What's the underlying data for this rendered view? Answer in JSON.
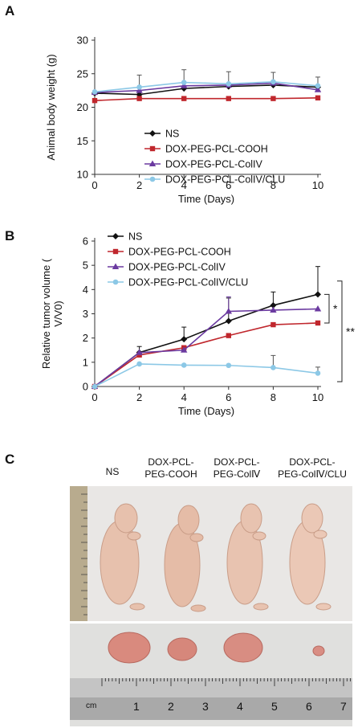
{
  "panels": {
    "a": "A",
    "b": "B",
    "c": "C"
  },
  "chart_data": [
    {
      "type": "line",
      "id": "A",
      "xlabel": "Time (Days)",
      "ylabel": "Animal body weight (g)",
      "xlim": [
        0,
        10
      ],
      "ylim": [
        10,
        30
      ],
      "x_ticks": [
        0,
        2,
        4,
        6,
        8,
        10
      ],
      "y_ticks": [
        10,
        15,
        20,
        25,
        30
      ],
      "legend_position": "center",
      "x": [
        0,
        2,
        4,
        6,
        8,
        10
      ],
      "series": [
        {
          "name": "NS",
          "color": "#111111",
          "marker": "diamond",
          "values": [
            22.1,
            21.9,
            22.8,
            23.1,
            23.3,
            23.0
          ],
          "errors": [
            0.0,
            0.0,
            0.0,
            0.0,
            0.0,
            0.0
          ]
        },
        {
          "name": "DOX-PEG-PCL-COOH",
          "color": "#c0272d",
          "marker": "square",
          "values": [
            21.0,
            21.3,
            21.3,
            21.3,
            21.3,
            21.4
          ],
          "errors": [
            0,
            0,
            0,
            0,
            0,
            0
          ]
        },
        {
          "name": "DOX-PEG-PCL-ColIV",
          "color": "#6b3aa0",
          "marker": "triangle",
          "values": [
            22.2,
            22.5,
            23.2,
            23.3,
            23.6,
            22.6
          ],
          "errors": [
            0,
            0,
            0,
            0,
            0,
            0
          ]
        },
        {
          "name": "DOX-PEG-PCL-ColIV/CLU",
          "color": "#8cc8e6",
          "marker": "circle",
          "values": [
            22.3,
            23.0,
            23.7,
            23.5,
            23.8,
            23.2
          ],
          "errors": [
            0.0,
            1.8,
            1.9,
            1.8,
            1.4,
            1.3
          ]
        }
      ]
    },
    {
      "type": "line",
      "id": "B",
      "xlabel": "Time (Days)",
      "ylabel": "Relative tumor volume (V/V0)",
      "xlim": [
        0,
        10
      ],
      "ylim": [
        0,
        6
      ],
      "x_ticks": [
        0,
        2,
        4,
        6,
        8,
        10
      ],
      "y_ticks": [
        0,
        1,
        2,
        3,
        4,
        5,
        6
      ],
      "legend_position": "top-left",
      "x": [
        0,
        2,
        4,
        6,
        8,
        10
      ],
      "series": [
        {
          "name": "NS",
          "color": "#111111",
          "marker": "diamond",
          "values": [
            0,
            1.4,
            1.95,
            2.7,
            3.35,
            3.8
          ],
          "errors": [
            0,
            0.25,
            0.5,
            0.95,
            0.55,
            1.15
          ]
        },
        {
          "name": "DOX-PEG-PCL-COOH",
          "color": "#c0272d",
          "marker": "square",
          "values": [
            0,
            1.3,
            1.6,
            2.1,
            2.55,
            2.62
          ],
          "errors": [
            0,
            0,
            0,
            0,
            0,
            0
          ]
        },
        {
          "name": "DOX-PEG-PCL-ColIV",
          "color": "#6b3aa0",
          "marker": "triangle",
          "values": [
            0,
            1.4,
            1.5,
            3.1,
            3.15,
            3.2
          ],
          "errors": [
            0,
            0,
            0,
            0.6,
            0,
            0
          ]
        },
        {
          "name": "DOX-PEG-PCL-ColIV/CLU",
          "color": "#8cc8e6",
          "marker": "circle",
          "values": [
            0,
            0.93,
            0.88,
            0.87,
            0.78,
            0.55
          ],
          "errors": [
            0,
            0,
            0,
            0,
            0.5,
            0.25
          ]
        }
      ],
      "annotations": [
        {
          "text": "*",
          "from_series": "NS",
          "to_series": "DOX-PEG-PCL-COOH"
        },
        {
          "text": "**",
          "from_series": "NS",
          "to_series": "DOX-PEG-PCL-ColIV/CLU"
        }
      ]
    }
  ],
  "photo": {
    "columns": [
      {
        "line1": "NS",
        "line2": ""
      },
      {
        "line1": "DOX-PCL-",
        "line2": "PEG-COOH"
      },
      {
        "line1": "DOX-PCL-",
        "line2": "PEG-ColⅣ"
      },
      {
        "line1": "DOX-PCL-",
        "line2": "PEG-ColⅣ/CLU"
      }
    ],
    "ruler_unit": "cm",
    "ruler_numbers": [
      "1",
      "2",
      "3",
      "4",
      "5",
      "6",
      "7"
    ]
  }
}
